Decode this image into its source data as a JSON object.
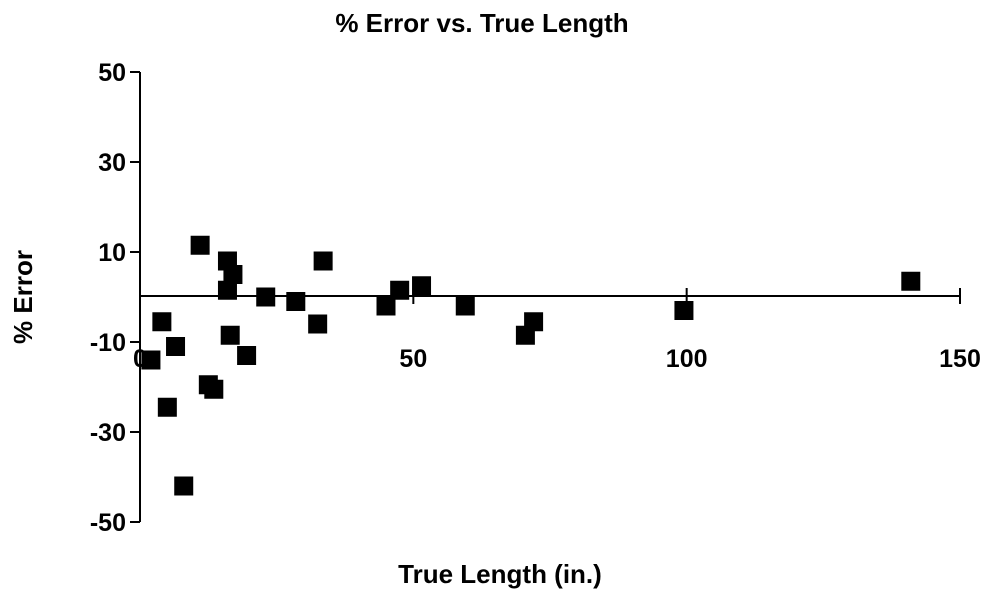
{
  "chart_data": {
    "type": "scatter",
    "title": "% Error vs. True Length",
    "xlabel": "True Length (in.)",
    "ylabel": "% Error",
    "xlim": [
      0,
      150
    ],
    "ylim": [
      -50,
      50
    ],
    "x_ticks": [
      0,
      50,
      100,
      150
    ],
    "y_ticks": [
      50,
      30,
      10,
      -10,
      -30,
      -50
    ],
    "x_tick_labels": [
      "0",
      "50",
      "100",
      "150"
    ],
    "y_tick_labels": [
      "50",
      "30",
      "10",
      "-10",
      "-30",
      "-50"
    ],
    "grid": false,
    "legend": "none",
    "marker": "square",
    "marker_color": "#000000",
    "series": [
      {
        "points": [
          [
            2,
            -14
          ],
          [
            4,
            -5.5
          ],
          [
            5,
            -24.5
          ],
          [
            6.5,
            -11
          ],
          [
            8,
            -42
          ],
          [
            11,
            11.5
          ],
          [
            12.5,
            -19.5
          ],
          [
            13.5,
            -20.5
          ],
          [
            16,
            8
          ],
          [
            16,
            1.5
          ],
          [
            16.5,
            -8.5
          ],
          [
            17,
            5
          ],
          [
            19.5,
            -13
          ],
          [
            23,
            0
          ],
          [
            28.5,
            -1
          ],
          [
            32.5,
            -6
          ],
          [
            33.5,
            8
          ],
          [
            45,
            -2
          ],
          [
            47.5,
            1.5
          ],
          [
            51.5,
            2.5
          ],
          [
            59.5,
            -2
          ],
          [
            70.5,
            -8.5
          ],
          [
            72,
            -5.5
          ],
          [
            99.5,
            -3
          ],
          [
            141,
            3.5
          ]
        ]
      }
    ]
  }
}
